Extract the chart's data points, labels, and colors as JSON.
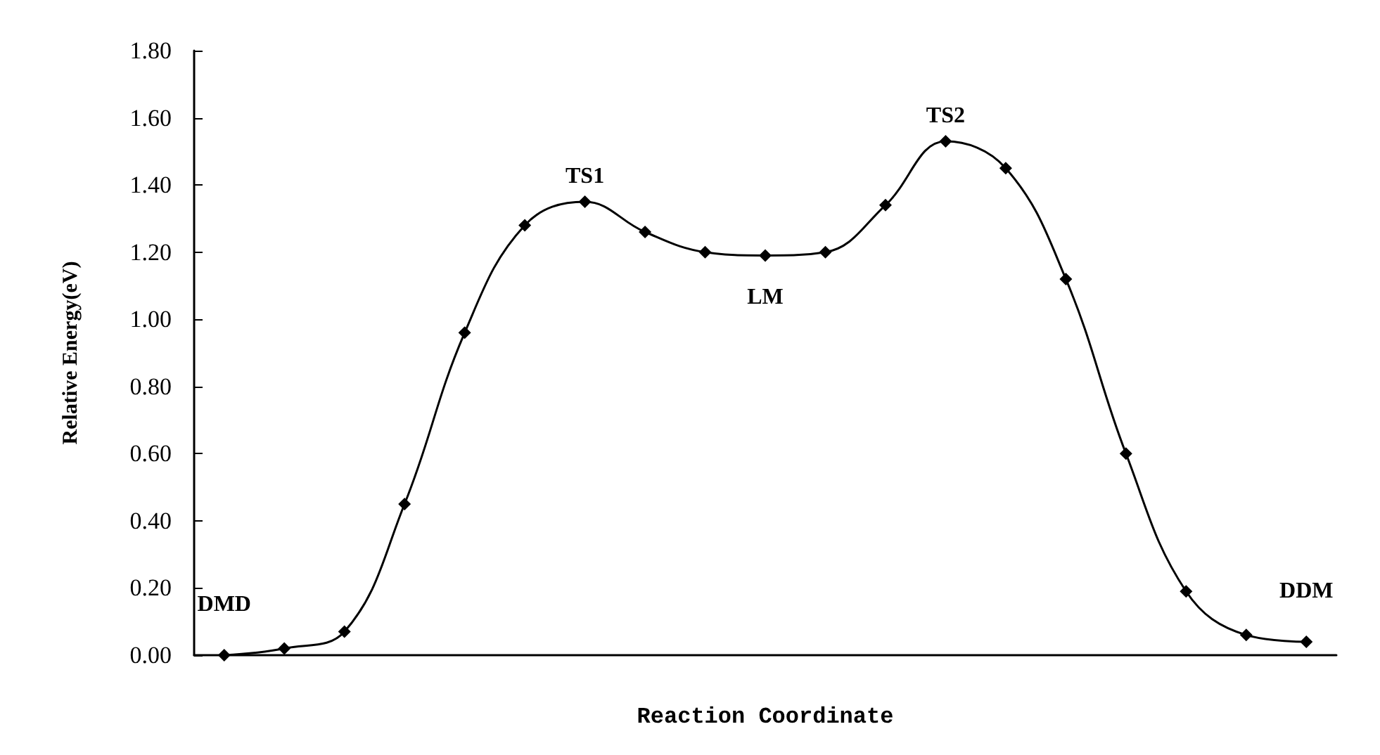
{
  "chart_data": {
    "type": "line",
    "xlabel": "Reaction Coordinate",
    "ylabel": "Relative Energy(eV)",
    "categories": [
      null,
      null,
      null,
      null,
      null,
      null,
      null,
      null,
      null,
      null,
      null,
      null,
      null,
      null,
      null,
      null,
      null,
      null,
      null
    ],
    "series": [
      {
        "color": "#000000",
        "values": [
          0.0,
          0.02,
          0.07,
          0.45,
          0.96,
          1.28,
          1.35,
          1.26,
          1.2,
          1.19,
          1.2,
          1.34,
          1.53,
          1.45,
          1.12,
          0.6,
          0.19,
          0.06,
          0.04
        ]
      }
    ],
    "ylim": [
      0,
      1.8
    ],
    "yticks": [
      {
        "value": 0,
        "label": "0.00"
      },
      {
        "value": 0.2,
        "label": "0.20"
      },
      {
        "value": 0.4,
        "label": "0.40"
      },
      {
        "value": 0.6,
        "label": "0.60"
      },
      {
        "value": 0.8,
        "label": "0.80"
      },
      {
        "value": 1,
        "label": "1.00"
      },
      {
        "value": 1.2,
        "label": "1.20"
      },
      {
        "value": 1.4,
        "label": "1.40"
      },
      {
        "value": 1.6,
        "label": "1.60"
      },
      {
        "value": 1.8,
        "label": "1.80"
      }
    ],
    "annotations": [
      {
        "text": "DMD",
        "y": 0.0
      },
      {
        "text": "TS1",
        "y": 1.35
      },
      {
        "text": "LM",
        "y": 1.19
      },
      {
        "text": "TS2",
        "y": 1.53
      },
      {
        "text": "DDM",
        "y": 0.04
      }
    ],
    "grid": false,
    "marker": "diamond",
    "line_style": "solid",
    "tick_labels": "y"
  }
}
